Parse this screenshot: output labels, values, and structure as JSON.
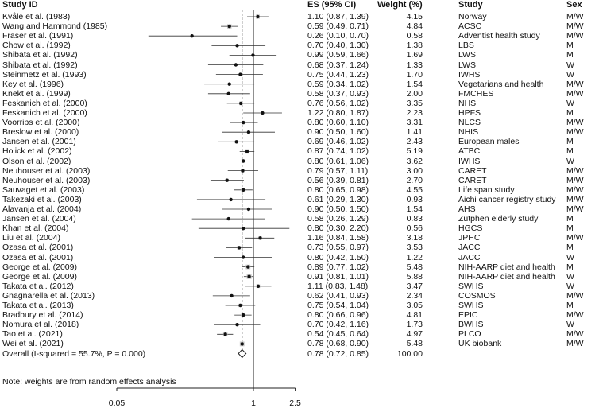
{
  "chart_data": {
    "type": "forest",
    "headers": {
      "study": "Study ID",
      "es": "ES (95% CI)",
      "weight": "Weight (%)",
      "cohort": "Study",
      "sex": "Sex"
    },
    "x_scale": "log",
    "xlim": [
      0.05,
      2.5
    ],
    "x_ticks": [
      {
        "value": 0.05,
        "label": "0.05"
      },
      {
        "value": 1,
        "label": "1"
      },
      {
        "value": 2.5,
        "label": "2.5"
      }
    ],
    "null_line": 1,
    "pooled_line": 0.78,
    "studies": [
      {
        "study": "Kvåle et al. (1983)",
        "es": 1.1,
        "lo": 0.87,
        "hi": 1.39,
        "es_text": "1.10 (0.87, 1.39)",
        "weight": "4.15",
        "cohort": "Norway",
        "sex": "M/W"
      },
      {
        "study": "Wang and Hammond (1985)",
        "es": 0.59,
        "lo": 0.49,
        "hi": 0.71,
        "es_text": "0.59 (0.49, 0.71)",
        "weight": "4.84",
        "cohort": "ACSC",
        "sex": "M/W"
      },
      {
        "study": "Fraser et al. (1991)",
        "es": 0.26,
        "lo": 0.1,
        "hi": 0.7,
        "es_text": "0.26 (0.10, 0.70)",
        "weight": "0.58",
        "cohort": "Adventist health study",
        "sex": "M/W"
      },
      {
        "study": "Chow et al. (1992)",
        "es": 0.7,
        "lo": 0.4,
        "hi": 1.3,
        "es_text": "0.70 (0.40, 1.30)",
        "weight": "1.38",
        "cohort": "LBS",
        "sex": "M"
      },
      {
        "study": "Shibata et al. (1992)",
        "es": 0.99,
        "lo": 0.59,
        "hi": 1.66,
        "es_text": "0.99 (0.59, 1.66)",
        "weight": "1.69",
        "cohort": "LWS",
        "sex": "M"
      },
      {
        "study": "Shibata et al. (1992)",
        "es": 0.68,
        "lo": 0.37,
        "hi": 1.24,
        "es_text": "0.68 (0.37, 1.24)",
        "weight": "1.33",
        "cohort": "LWS",
        "sex": "W"
      },
      {
        "study": "Steinmetz et al. (1993)",
        "es": 0.75,
        "lo": 0.44,
        "hi": 1.23,
        "es_text": "0.75 (0.44, 1.23)",
        "weight": "1.70",
        "cohort": "IWHS",
        "sex": "W"
      },
      {
        "study": "Key et al. (1996)",
        "es": 0.59,
        "lo": 0.34,
        "hi": 1.02,
        "es_text": "0.59 (0.34, 1.02)",
        "weight": "1.54",
        "cohort": "Vegetarians and health",
        "sex": "M/W"
      },
      {
        "study": "Knekt et al. (1999)",
        "es": 0.58,
        "lo": 0.37,
        "hi": 0.93,
        "es_text": "0.58 (0.37, 0.93)",
        "weight": "2.00",
        "cohort": "FMCHES",
        "sex": "M/W"
      },
      {
        "study": "Feskanich et al. (2000)",
        "es": 0.76,
        "lo": 0.56,
        "hi": 1.02,
        "es_text": "0.76 (0.56, 1.02)",
        "weight": "3.35",
        "cohort": "NHS",
        "sex": "W"
      },
      {
        "study": "Feskanich et al. (2000)",
        "es": 1.22,
        "lo": 0.8,
        "hi": 1.87,
        "es_text": "1.22 (0.80, 1.87)",
        "weight": "2.23",
        "cohort": "HPFS",
        "sex": "M"
      },
      {
        "study": "Voorrips et al. (2000)",
        "es": 0.8,
        "lo": 0.6,
        "hi": 1.1,
        "es_text": "0.80 (0.60, 1.10)",
        "weight": "3.31",
        "cohort": "NLCS",
        "sex": "M/W"
      },
      {
        "study": "Breslow et al. (2000)",
        "es": 0.9,
        "lo": 0.5,
        "hi": 1.6,
        "es_text": "0.90 (0.50, 1.60)",
        "weight": "1.41",
        "cohort": "NHIS",
        "sex": "M/W"
      },
      {
        "study": "Jansen et al. (2001)",
        "es": 0.69,
        "lo": 0.46,
        "hi": 1.02,
        "es_text": "0.69 (0.46, 1.02)",
        "weight": "2.43",
        "cohort": "European males",
        "sex": "M"
      },
      {
        "study": "Holick et al. (2002)",
        "es": 0.87,
        "lo": 0.74,
        "hi": 1.02,
        "es_text": "0.87 (0.74, 1.02)",
        "weight": "5.19",
        "cohort": "ATBC",
        "sex": "M"
      },
      {
        "study": "Olson et al. (2002)",
        "es": 0.8,
        "lo": 0.61,
        "hi": 1.06,
        "es_text": "0.80 (0.61, 1.06)",
        "weight": "3.62",
        "cohort": "IWHS",
        "sex": "W"
      },
      {
        "study": "Neuhouser et al. (2003)",
        "es": 0.79,
        "lo": 0.57,
        "hi": 1.11,
        "es_text": "0.79 (0.57, 1.11)",
        "weight": "3.00",
        "cohort": "CARET",
        "sex": "M/W"
      },
      {
        "study": "Neuhouser et al. (2003)",
        "es": 0.56,
        "lo": 0.39,
        "hi": 0.81,
        "es_text": "0.56 (0.39, 0.81)",
        "weight": "2.70",
        "cohort": "CARET",
        "sex": "M/W"
      },
      {
        "study": "Sauvaget et al. (2003)",
        "es": 0.8,
        "lo": 0.65,
        "hi": 0.98,
        "es_text": "0.80 (0.65, 0.98)",
        "weight": "4.55",
        "cohort": "Life span study",
        "sex": "M/W"
      },
      {
        "study": "Takezaki et al. (2003)",
        "es": 0.61,
        "lo": 0.29,
        "hi": 1.3,
        "es_text": "0.61 (0.29, 1.30)",
        "weight": "0.93",
        "cohort": "Aichi cancer registry study",
        "sex": "M/W"
      },
      {
        "study": "Alavanja et al. (2004)",
        "es": 0.9,
        "lo": 0.5,
        "hi": 1.5,
        "es_text": "0.90 (0.50, 1.50)",
        "weight": "1.54",
        "cohort": "AHS",
        "sex": "M/W"
      },
      {
        "study": "Jansen et al. (2004)",
        "es": 0.58,
        "lo": 0.26,
        "hi": 1.29,
        "es_text": "0.58 (0.26, 1.29)",
        "weight": "0.83",
        "cohort": "Zutphen elderly study",
        "sex": "M"
      },
      {
        "study": "Khan et al. (2004)",
        "es": 0.8,
        "lo": 0.3,
        "hi": 2.2,
        "es_text": "0.80 (0.30, 2.20)",
        "weight": "0.56",
        "cohort": "HGCS",
        "sex": "M"
      },
      {
        "study": "Liu et al. (2004)",
        "es": 1.16,
        "lo": 0.84,
        "hi": 1.58,
        "es_text": "1.16 (0.84, 1.58)",
        "weight": "3.18",
        "cohort": "JPHC",
        "sex": "M/W"
      },
      {
        "study": "Ozasa et al. (2001)",
        "es": 0.73,
        "lo": 0.55,
        "hi": 0.97,
        "es_text": "0.73 (0.55, 0.97)",
        "weight": "3.53",
        "cohort": "JACC",
        "sex": "M"
      },
      {
        "study": "Ozasa et al. (2001)",
        "es": 0.8,
        "lo": 0.42,
        "hi": 1.5,
        "es_text": "0.80 (0.42, 1.50)",
        "weight": "1.22",
        "cohort": "JACC",
        "sex": "W"
      },
      {
        "study": "George et al. (2009)",
        "es": 0.89,
        "lo": 0.77,
        "hi": 1.02,
        "es_text": "0.89 (0.77, 1.02)",
        "weight": "5.48",
        "cohort": "NIH-AARP diet and health",
        "sex": "M"
      },
      {
        "study": "George et al. (2009)",
        "es": 0.91,
        "lo": 0.81,
        "hi": 1.01,
        "es_text": "0.91 (0.81, 1.01)",
        "weight": "5.88",
        "cohort": "NIH-AARP diet and health",
        "sex": "W"
      },
      {
        "study": "Takata et al. (2012)",
        "es": 1.11,
        "lo": 0.83,
        "hi": 1.48,
        "es_text": "1.11 (0.83, 1.48)",
        "weight": "3.47",
        "cohort": "SWHS",
        "sex": "W"
      },
      {
        "study": "Gnagnarella et al. (2013)",
        "es": 0.62,
        "lo": 0.41,
        "hi": 0.93,
        "es_text": "0.62 (0.41, 0.93)",
        "weight": "2.34",
        "cohort": "COSMOS",
        "sex": "M/W"
      },
      {
        "study": "Takata et al. (2013)",
        "es": 0.75,
        "lo": 0.54,
        "hi": 1.04,
        "es_text": "0.75 (0.54, 1.04)",
        "weight": "3.05",
        "cohort": "SWHS",
        "sex": "M"
      },
      {
        "study": "Bradbury et al. (2014)",
        "es": 0.8,
        "lo": 0.66,
        "hi": 0.96,
        "es_text": "0.80 (0.66, 0.96)",
        "weight": "4.81",
        "cohort": "EPIC",
        "sex": "M/W"
      },
      {
        "study": "Nomura et al. (2018)",
        "es": 0.7,
        "lo": 0.42,
        "hi": 1.16,
        "es_text": "0.70 (0.42, 1.16)",
        "weight": "1.73",
        "cohort": "BWHS",
        "sex": "W"
      },
      {
        "study": "Tao et al. (2021)",
        "es": 0.54,
        "lo": 0.45,
        "hi": 0.64,
        "es_text": "0.54 (0.45, 0.64)",
        "weight": "4.97",
        "cohort": "PLCO",
        "sex": "M/W"
      },
      {
        "study": "Wei et al. (2021)",
        "es": 0.78,
        "lo": 0.68,
        "hi": 0.9,
        "es_text": "0.78 (0.68, 0.90)",
        "weight": "5.48",
        "cohort": "UK biobank",
        "sex": "M/W"
      }
    ],
    "overall": {
      "label": "Overall  (I-squared = 55.7%, P = 0.000)",
      "es": 0.78,
      "lo": 0.72,
      "hi": 0.85,
      "es_text": "0.78 (0.72, 0.85)",
      "weight": "100.00"
    },
    "note": "Note: weights are from random effects analysis"
  }
}
